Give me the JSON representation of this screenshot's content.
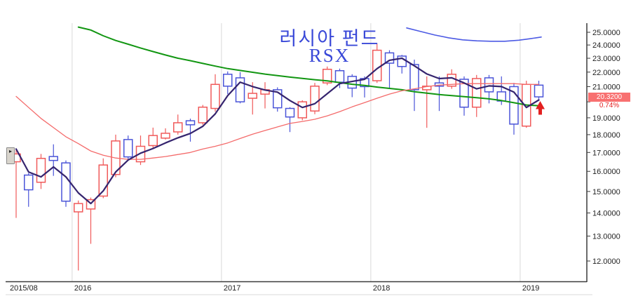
{
  "title": {
    "line1": "러시아 펀드",
    "line2": "RSX"
  },
  "left_button": {
    "glyph": "▸"
  },
  "price_label": {
    "value": "20.3200",
    "change": "0.74%"
  },
  "chart_data": {
    "type": "candlestick",
    "title": "러시아 펀드 RSX",
    "period": "monthly",
    "log_scale": true,
    "grid": "vertical-year-lines",
    "y_axis": {
      "min": 12,
      "max": 25,
      "tick_step": 1,
      "decimals": 4,
      "hidden_tick_label": 20,
      "side": "right"
    },
    "x_axis": {
      "first_label": "2015/08",
      "year_labels": [
        "2016",
        "2017",
        "2018",
        "2019"
      ]
    },
    "current_price": 20.32,
    "change_percent": "0.74%",
    "colors": {
      "up": "#f05a5a",
      "down": "#4a54d8",
      "ma_short": "#35246e",
      "ma_long": "#f46b6b",
      "ma_longest": "#129612",
      "blue_band": "#4c5ae4",
      "grid": "#d9d9d9",
      "axis": "#3a3a3a",
      "faint_line": "#dadada",
      "tick_text": "#222222",
      "arrow": "#e32020",
      "label_bg": "#f87070",
      "label_text": "#ffffff",
      "change_text": "#e32222"
    },
    "candles": [
      {
        "m": "2015/08",
        "dir": "up",
        "o": 16.5,
        "h": 17.13,
        "l": 13.78,
        "c": 16.92
      },
      {
        "m": "2015/09",
        "dir": "down",
        "o": 15.81,
        "h": 15.91,
        "l": 14.28,
        "c": 15.08
      },
      {
        "m": "2015/10",
        "dir": "up",
        "o": 15.45,
        "h": 16.92,
        "l": 15.12,
        "c": 16.68
      },
      {
        "m": "2015/11",
        "dir": "down",
        "o": 16.78,
        "h": 17.45,
        "l": 15.77,
        "c": 16.57
      },
      {
        "m": "2015/12",
        "dir": "down",
        "o": 16.44,
        "h": 16.57,
        "l": 14.28,
        "c": 14.54
      },
      {
        "m": "2016/01",
        "dir": "up",
        "o": 14.05,
        "h": 14.57,
        "l": 11.64,
        "c": 14.43
      },
      {
        "m": "2016/02",
        "dir": "up",
        "o": 14.18,
        "h": 14.71,
        "l": 12.68,
        "c": 14.61
      },
      {
        "m": "2016/03",
        "dir": "up",
        "o": 14.78,
        "h": 16.68,
        "l": 14.68,
        "c": 16.33
      },
      {
        "m": "2016/04",
        "dir": "up",
        "o": 15.84,
        "h": 18.0,
        "l": 15.7,
        "c": 17.64
      },
      {
        "m": "2016/05",
        "dir": "down",
        "o": 17.72,
        "h": 17.95,
        "l": 16.57,
        "c": 16.76
      },
      {
        "m": "2016/06",
        "dir": "up",
        "o": 16.5,
        "h": 17.95,
        "l": 16.33,
        "c": 17.34
      },
      {
        "m": "2016/07",
        "dir": "up",
        "o": 17.38,
        "h": 18.41,
        "l": 17.26,
        "c": 17.95
      },
      {
        "m": "2016/08",
        "dir": "up",
        "o": 17.8,
        "h": 18.37,
        "l": 17.72,
        "c": 18.08
      },
      {
        "m": "2016/09",
        "dir": "up",
        "o": 18.16,
        "h": 19.2,
        "l": 18.0,
        "c": 18.7
      },
      {
        "m": "2016/10",
        "dir": "down",
        "o": 18.82,
        "h": 18.95,
        "l": 17.6,
        "c": 18.58
      },
      {
        "m": "2016/11",
        "dir": "up",
        "o": 18.7,
        "h": 19.8,
        "l": 18.58,
        "c": 19.66
      },
      {
        "m": "2016/12",
        "dir": "up",
        "o": 19.58,
        "h": 21.85,
        "l": 19.38,
        "c": 21.15
      },
      {
        "m": "2017/01",
        "dir": "down",
        "o": 21.85,
        "h": 22.05,
        "l": 20.5,
        "c": 21.03
      },
      {
        "m": "2017/02",
        "dir": "down",
        "o": 21.6,
        "h": 22.0,
        "l": 19.9,
        "c": 20.0
      },
      {
        "m": "2017/03",
        "dir": "up",
        "o": 20.23,
        "h": 21.3,
        "l": 19.2,
        "c": 20.55
      },
      {
        "m": "2017/04",
        "dir": "up",
        "o": 20.5,
        "h": 21.3,
        "l": 19.58,
        "c": 20.79
      },
      {
        "m": "2017/05",
        "dir": "down",
        "o": 20.79,
        "h": 20.95,
        "l": 19.38,
        "c": 19.62
      },
      {
        "m": "2017/06",
        "dir": "down",
        "o": 19.58,
        "h": 19.66,
        "l": 18.15,
        "c": 19.05
      },
      {
        "m": "2017/07",
        "dir": "up",
        "o": 19.0,
        "h": 20.1,
        "l": 18.85,
        "c": 20.0
      },
      {
        "m": "2017/08",
        "dir": "up",
        "o": 19.42,
        "h": 21.25,
        "l": 19.22,
        "c": 21.03
      },
      {
        "m": "2017/09",
        "dir": "up",
        "o": 21.25,
        "h": 22.4,
        "l": 21.1,
        "c": 22.2
      },
      {
        "m": "2017/10",
        "dir": "down",
        "o": 22.1,
        "h": 22.25,
        "l": 20.9,
        "c": 21.3
      },
      {
        "m": "2017/11",
        "dir": "down",
        "o": 21.7,
        "h": 21.85,
        "l": 20.3,
        "c": 20.9
      },
      {
        "m": "2017/12",
        "dir": "down",
        "o": 21.55,
        "h": 21.7,
        "l": 20.28,
        "c": 21.0
      },
      {
        "m": "2018/01",
        "dir": "up",
        "o": 21.4,
        "h": 24.1,
        "l": 21.25,
        "c": 23.6
      },
      {
        "m": "2018/02",
        "dir": "down",
        "o": 23.4,
        "h": 23.6,
        "l": 20.9,
        "c": 22.64
      },
      {
        "m": "2018/03",
        "dir": "down",
        "o": 23.16,
        "h": 23.25,
        "l": 21.9,
        "c": 22.4
      },
      {
        "m": "2018/04",
        "dir": "down",
        "o": 22.54,
        "h": 22.9,
        "l": 19.42,
        "c": 20.79
      },
      {
        "m": "2018/05",
        "dir": "up",
        "o": 20.79,
        "h": 21.7,
        "l": 18.4,
        "c": 21.03
      },
      {
        "m": "2018/06",
        "dir": "down",
        "o": 21.25,
        "h": 21.7,
        "l": 19.42,
        "c": 21.03
      },
      {
        "m": "2018/07",
        "dir": "up",
        "o": 21.03,
        "h": 22.2,
        "l": 20.85,
        "c": 21.85
      },
      {
        "m": "2018/08",
        "dir": "down",
        "o": 21.5,
        "h": 21.7,
        "l": 19.13,
        "c": 19.66
      },
      {
        "m": "2018/09",
        "dir": "up",
        "o": 19.66,
        "h": 21.8,
        "l": 19.05,
        "c": 21.55
      },
      {
        "m": "2018/10",
        "dir": "down",
        "o": 21.6,
        "h": 21.8,
        "l": 19.9,
        "c": 20.65
      },
      {
        "m": "2018/11",
        "dir": "down",
        "o": 20.65,
        "h": 21.7,
        "l": 19.8,
        "c": 20.05
      },
      {
        "m": "2018/12",
        "dir": "down",
        "o": 21.0,
        "h": 21.25,
        "l": 18.0,
        "c": 18.62
      },
      {
        "m": "2019/01",
        "dir": "up",
        "o": 18.5,
        "h": 21.4,
        "l": 18.4,
        "c": 21.15
      },
      {
        "m": "2019/02",
        "dir": "down",
        "o": 21.1,
        "h": 21.4,
        "l": 20.1,
        "c": 20.32
      }
    ],
    "ma_short": [
      17.19,
      15.97,
      15.72,
      16.23,
      15.72,
      14.93,
      14.43,
      15.03,
      15.97,
      16.59,
      16.96,
      17.22,
      17.53,
      17.82,
      18.07,
      18.49,
      19.24,
      20.4,
      21.3,
      21.0,
      20.77,
      20.63,
      20.08,
      19.64,
      19.88,
      20.53,
      21.2,
      21.35,
      21.5,
      22.25,
      22.85,
      23.0,
      22.45,
      21.87,
      21.55,
      21.6,
      21.25,
      20.85,
      21.05,
      21.0,
      20.63,
      19.64,
      20.12
    ],
    "ma_long": [
      20.35,
      19.64,
      18.96,
      18.41,
      17.88,
      17.49,
      17.08,
      16.85,
      16.7,
      16.63,
      16.63,
      16.7,
      16.78,
      16.89,
      17.0,
      17.19,
      17.34,
      17.53,
      17.78,
      18.03,
      18.24,
      18.45,
      18.66,
      18.78,
      18.91,
      19.12,
      19.38,
      19.68,
      19.95,
      20.23,
      20.5,
      20.72,
      20.85,
      21.0,
      21.1,
      21.15,
      21.2,
      21.2,
      21.2,
      21.2,
      21.2,
      21.15,
      21.15
    ],
    "ma_longest": [
      null,
      null,
      null,
      null,
      null,
      25.42,
      25.18,
      24.72,
      24.35,
      24.06,
      23.77,
      23.5,
      23.24,
      23.0,
      22.82,
      22.62,
      22.43,
      22.25,
      22.12,
      21.99,
      21.86,
      21.76,
      21.65,
      21.56,
      21.47,
      21.39,
      21.27,
      21.16,
      21.08,
      20.97,
      20.88,
      20.79,
      20.66,
      20.56,
      20.47,
      20.4,
      20.33,
      20.27,
      20.19,
      20.08,
      19.94,
      19.8,
      19.75
    ],
    "blue_band": [
      [
        580,
        25.35
      ],
      [
        600,
        25.06
      ],
      [
        620,
        24.78
      ],
      [
        640,
        24.56
      ],
      [
        660,
        24.4
      ],
      [
        680,
        24.32
      ],
      [
        700,
        24.29
      ],
      [
        720,
        24.29
      ],
      [
        740,
        24.37
      ],
      [
        755,
        24.48
      ],
      [
        772,
        24.62
      ]
    ],
    "annotations": [
      {
        "type": "up-arrow",
        "x_index": 42,
        "price": 20.05
      }
    ]
  }
}
